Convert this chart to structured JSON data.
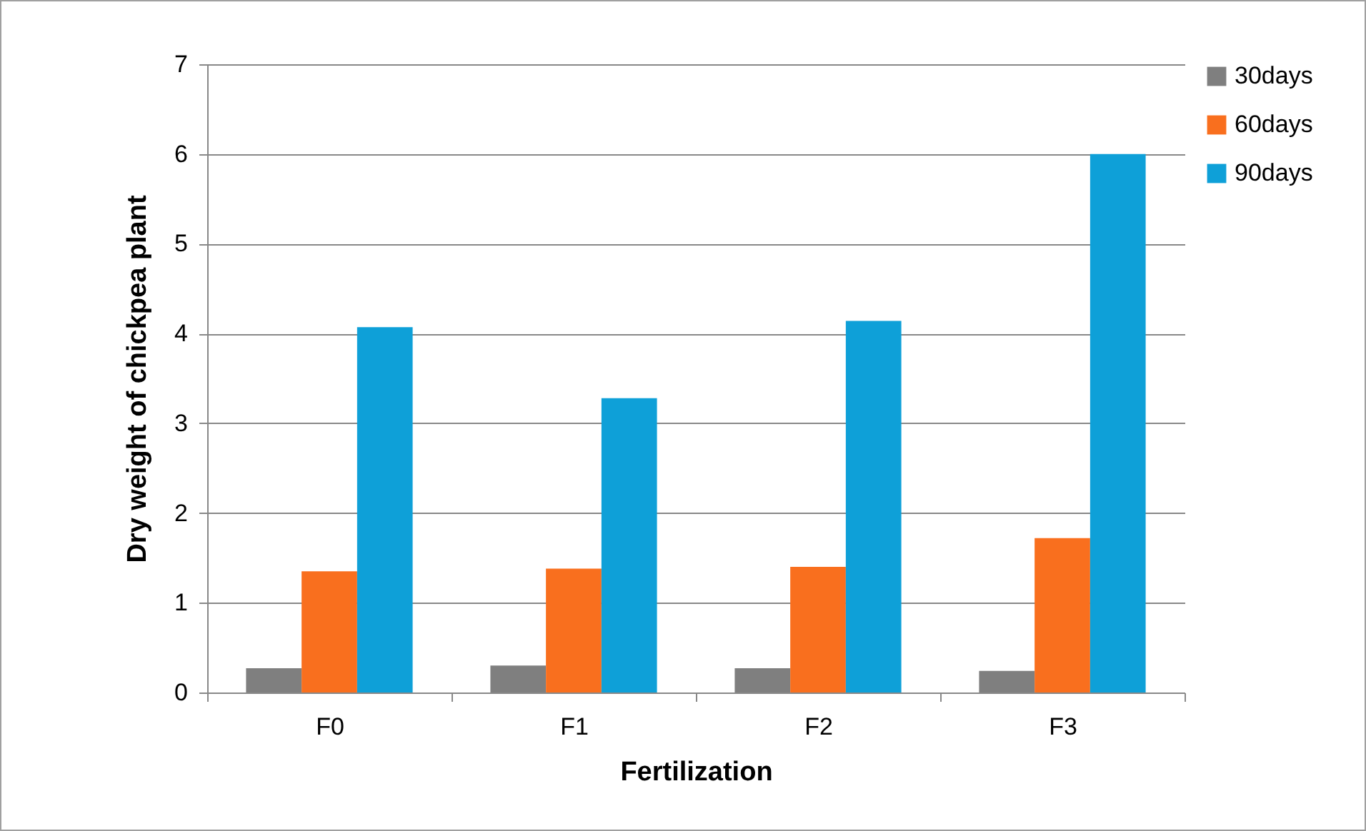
{
  "chart_data": {
    "type": "bar",
    "xlabel": "Fertilization",
    "ylabel": "Dry weight of chickpea plant",
    "categories": [
      "F0",
      "F1",
      "F2",
      "F3"
    ],
    "series": [
      {
        "name": "30days",
        "color": "#7f7f7f",
        "values": [
          0.27,
          0.3,
          0.27,
          0.24
        ]
      },
      {
        "name": "60days",
        "color": "#f96f1e",
        "values": [
          1.35,
          1.38,
          1.4,
          1.72
        ]
      },
      {
        "name": "90days",
        "color": "#0ea0d8",
        "values": [
          4.07,
          3.28,
          4.14,
          6.0
        ]
      }
    ],
    "ylim": [
      0,
      7
    ],
    "yticks": [
      0,
      1,
      2,
      3,
      4,
      5,
      6,
      7
    ],
    "grid": "y",
    "legend": "right"
  }
}
